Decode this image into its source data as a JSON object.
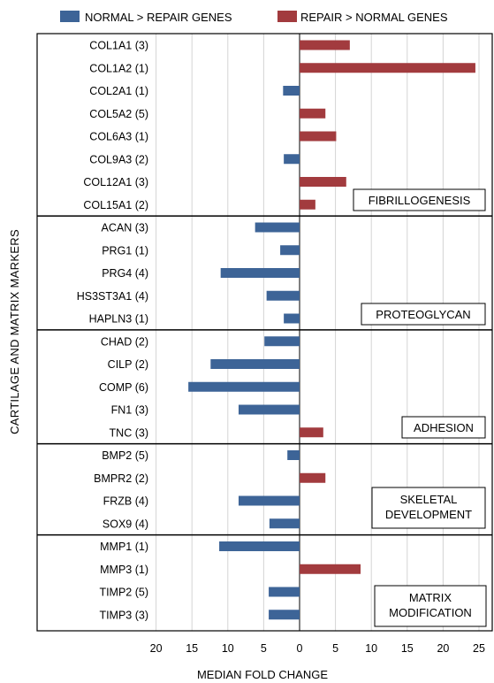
{
  "chart_data": {
    "type": "bar",
    "orientation": "horizontal",
    "xlabel": "MEDIAN FOLD CHANGE",
    "ylabel": "CARTILAGE AND MATRIX MARKERS",
    "xlim": [
      -25,
      25
    ],
    "xticks": [
      {
        "value": -20,
        "label": "20"
      },
      {
        "value": -15,
        "label": "15"
      },
      {
        "value": -10,
        "label": "10"
      },
      {
        "value": -5,
        "label": "5"
      },
      {
        "value": 0,
        "label": "0"
      },
      {
        "value": 5,
        "label": "5"
      },
      {
        "value": 10,
        "label": "10"
      },
      {
        "value": 15,
        "label": "15"
      },
      {
        "value": 20,
        "label": "20"
      },
      {
        "value": 25,
        "label": "25"
      }
    ],
    "grid": "vertical",
    "legend_position": "top",
    "legend": [
      {
        "label": "NORMAL > REPAIR GENES",
        "color": "#3d6497"
      },
      {
        "label": "REPAIR > NORMAL GENES",
        "color": "#a23b3e"
      }
    ],
    "groups": [
      {
        "name": "FIBRILLOGENESIS",
        "genes": [
          {
            "label": "COL1A1 (3)",
            "value": 7
          },
          {
            "label": "COL1A2 (1)",
            "value": 24.5
          },
          {
            "label": "COL2A1 (1)",
            "value": -2.3
          },
          {
            "label": "COL5A2 (5)",
            "value": 3.6
          },
          {
            "label": "COL6A3 (1)",
            "value": 5.1
          },
          {
            "label": "COL9A3 (2)",
            "value": -2.2
          },
          {
            "label": "COL12A1 (3)",
            "value": 6.5
          },
          {
            "label": "COL15A1 (2)",
            "value": 2.2
          }
        ]
      },
      {
        "name": "PROTEOGLYCAN",
        "genes": [
          {
            "label": "ACAN (3)",
            "value": -6.2
          },
          {
            "label": "PRG1 (1)",
            "value": -2.7
          },
          {
            "label": "PRG4 (4)",
            "value": -11
          },
          {
            "label": "HS3ST3A1 (4)",
            "value": -4.6
          },
          {
            "label": "HAPLN3 (1)",
            "value": -2.2
          }
        ]
      },
      {
        "name": "ADHESION",
        "genes": [
          {
            "label": "CHAD (2)",
            "value": -4.9
          },
          {
            "label": "CILP (2)",
            "value": -12.4
          },
          {
            "label": "COMP (6)",
            "value": -15.5
          },
          {
            "label": "FN1 (3)",
            "value": -8.5
          },
          {
            "label": "TNC (3)",
            "value": 3.3
          }
        ]
      },
      {
        "name": "SKELETAL DEVELOPMENT",
        "name_lines": [
          "SKELETAL",
          "DEVELOPMENT"
        ],
        "genes": [
          {
            "label": "BMP2 (5)",
            "value": -1.7
          },
          {
            "label": "BMPR2 (2)",
            "value": 3.6
          },
          {
            "label": "FRZB (4)",
            "value": -8.5
          },
          {
            "label": "SOX9 (4)",
            "value": -4.2
          }
        ]
      },
      {
        "name": "MATRIX MODIFICATION",
        "name_lines": [
          "MATRIX",
          "MODIFICATION"
        ],
        "genes": [
          {
            "label": "MMP1 (1)",
            "value": -11.2
          },
          {
            "label": "MMP3 (1)",
            "value": 8.5
          },
          {
            "label": "TIMP2 (5)",
            "value": -4.3
          },
          {
            "label": "TIMP3 (3)",
            "value": -4.3
          }
        ]
      }
    ]
  }
}
